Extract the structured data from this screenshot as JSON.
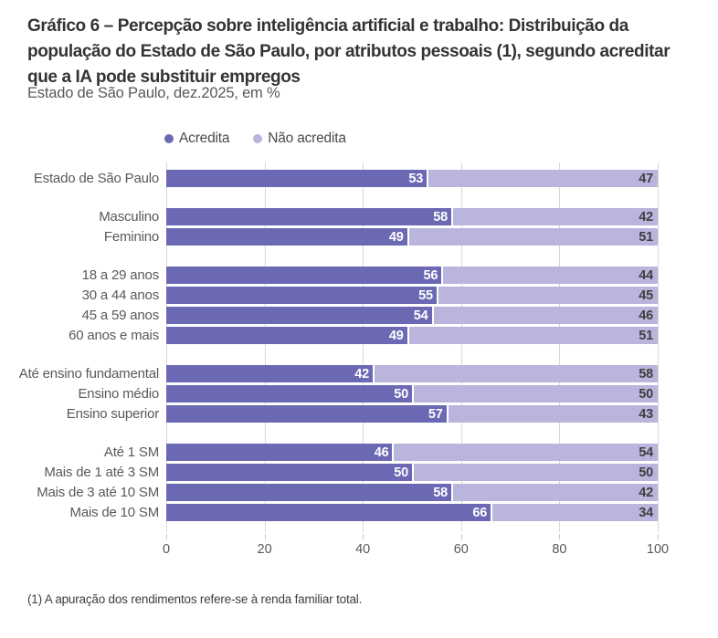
{
  "header": {
    "title": "Gráfico 6 – Percepção sobre inteligência artificial e trabalho: Distribuição da população do Estado de São Paulo, por atributos pessoais (1), segundo acreditar que a IA pode substituir empregos",
    "subtitle": "Estado de São Paulo, dez.2025, em %"
  },
  "legend": {
    "items": [
      {
        "label": "Acredita"
      },
      {
        "label": "Não acredita"
      }
    ]
  },
  "colors": {
    "acredita": "#6c69b4",
    "nao_acredita": "#b9b5dd",
    "gridline": "#d9d9d9",
    "value_dark_text": "#ffffff",
    "value_light_text": "#404040"
  },
  "chart_data": {
    "type": "bar",
    "orientation": "horizontal",
    "stacked": true,
    "title": "Gráfico 6 – Percepção sobre inteligência artificial e trabalho: Distribuição da população do Estado de São Paulo, por atributos pessoais (1), segundo acreditar que a IA pode substituir empregos",
    "subtitle": "Estado de São Paulo, dez.2025, em %",
    "series_names": [
      "Acredita",
      "Não acredita"
    ],
    "xlabel": "",
    "ylabel": "",
    "xlim": [
      0,
      100
    ],
    "x_ticks": [
      0,
      20,
      40,
      60,
      80,
      100
    ],
    "grid": true,
    "legend_position": "top",
    "groups": [
      {
        "name": "total",
        "rows": [
          {
            "label": "Estado de São Paulo",
            "values": [
              53,
              47
            ]
          }
        ]
      },
      {
        "name": "sexo",
        "rows": [
          {
            "label": "Masculino",
            "values": [
              58,
              42
            ]
          },
          {
            "label": "Feminino",
            "values": [
              49,
              51
            ]
          }
        ]
      },
      {
        "name": "idade",
        "rows": [
          {
            "label": "18 a 29 anos",
            "values": [
              56,
              44
            ]
          },
          {
            "label": "30 a 44 anos",
            "values": [
              55,
              45
            ]
          },
          {
            "label": "45 a 59 anos",
            "values": [
              54,
              46
            ]
          },
          {
            "label": "60 anos e mais",
            "values": [
              49,
              51
            ]
          }
        ]
      },
      {
        "name": "escolaridade",
        "rows": [
          {
            "label": "Até ensino fundamental",
            "values": [
              42,
              58
            ]
          },
          {
            "label": "Ensino médio",
            "values": [
              50,
              50
            ]
          },
          {
            "label": "Ensino superior",
            "values": [
              57,
              43
            ]
          }
        ]
      },
      {
        "name": "renda",
        "rows": [
          {
            "label": "Até 1 SM",
            "values": [
              46,
              54
            ]
          },
          {
            "label": "Mais de 1 até 3 SM",
            "values": [
              50,
              50
            ]
          },
          {
            "label": "Mais de 3 até 10 SM",
            "values": [
              58,
              42
            ]
          },
          {
            "label": "Mais de 10 SM",
            "values": [
              66,
              34
            ]
          }
        ]
      }
    ]
  },
  "footnote": "(1) A apuração dos rendimentos refere-se à renda familiar total."
}
